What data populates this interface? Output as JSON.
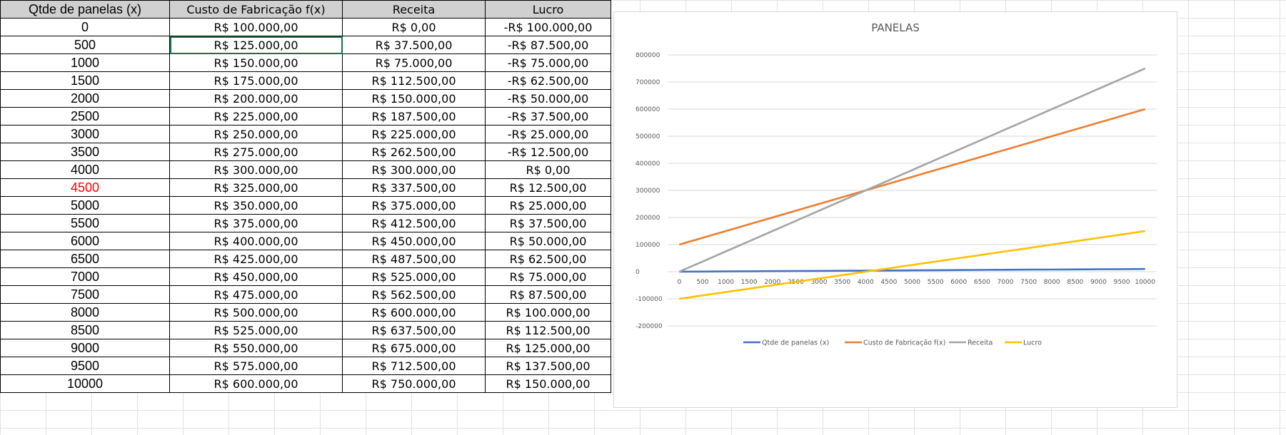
{
  "table": {
    "headers": [
      "Qtde de panelas (x)",
      "Custo de Fabricação f(x)",
      "Receita",
      "Lucro"
    ],
    "highlight_row_index": 9,
    "selected_cell": {
      "row": 1,
      "col": 1
    },
    "rows": [
      [
        "0",
        "R$ 100.000,00",
        "R$ 0,00",
        "-R$ 100.000,00"
      ],
      [
        "500",
        "R$ 125.000,00",
        "R$ 37.500,00",
        "-R$ 87.500,00"
      ],
      [
        "1000",
        "R$ 150.000,00",
        "R$ 75.000,00",
        "-R$ 75.000,00"
      ],
      [
        "1500",
        "R$ 175.000,00",
        "R$ 112.500,00",
        "-R$ 62.500,00"
      ],
      [
        "2000",
        "R$ 200.000,00",
        "R$ 150.000,00",
        "-R$ 50.000,00"
      ],
      [
        "2500",
        "R$ 225.000,00",
        "R$ 187.500,00",
        "-R$ 37.500,00"
      ],
      [
        "3000",
        "R$ 250.000,00",
        "R$ 225.000,00",
        "-R$ 25.000,00"
      ],
      [
        "3500",
        "R$ 275.000,00",
        "R$ 262.500,00",
        "-R$ 12.500,00"
      ],
      [
        "4000",
        "R$ 300.000,00",
        "R$ 300.000,00",
        "R$ 0,00"
      ],
      [
        "4500",
        "R$ 325.000,00",
        "R$ 337.500,00",
        "R$ 12.500,00"
      ],
      [
        "5000",
        "R$ 350.000,00",
        "R$ 375.000,00",
        "R$ 25.000,00"
      ],
      [
        "5500",
        "R$ 375.000,00",
        "R$ 412.500,00",
        "R$ 37.500,00"
      ],
      [
        "6000",
        "R$ 400.000,00",
        "R$ 450.000,00",
        "R$ 50.000,00"
      ],
      [
        "6500",
        "R$ 425.000,00",
        "R$ 487.500,00",
        "R$ 62.500,00"
      ],
      [
        "7000",
        "R$ 450.000,00",
        "R$ 525.000,00",
        "R$ 75.000,00"
      ],
      [
        "7500",
        "R$ 475.000,00",
        "R$ 562.500,00",
        "R$ 87.500,00"
      ],
      [
        "8000",
        "R$ 500.000,00",
        "R$ 600.000,00",
        "R$ 100.000,00"
      ],
      [
        "8500",
        "R$ 525.000,00",
        "R$ 637.500,00",
        "R$ 112.500,00"
      ],
      [
        "9000",
        "R$ 550.000,00",
        "R$ 675.000,00",
        "R$ 125.000,00"
      ],
      [
        "9500",
        "R$ 575.000,00",
        "R$ 712.500,00",
        "R$ 137.500,00"
      ],
      [
        "10000",
        "R$ 600.000,00",
        "R$ 750.000,00",
        "R$ 150.000,00"
      ]
    ],
    "colors": {
      "highlight_text": "#ff0000",
      "header_bg": "#d0d0d0",
      "selection": "#1e7145"
    }
  },
  "chart_data": {
    "type": "line",
    "title": "PANELAS",
    "xlabel": "",
    "ylabel": "",
    "x": [
      "0",
      "500",
      "1000",
      "1500",
      "2000",
      "2500",
      "3000",
      "3500",
      "4000",
      "4500",
      "5000",
      "5500",
      "6000",
      "6500",
      "7000",
      "7500",
      "8000",
      "8500",
      "9000",
      "9500",
      "10000"
    ],
    "ylim": [
      -200000,
      800000
    ],
    "yticks": [
      -200000,
      -100000,
      0,
      100000,
      200000,
      300000,
      400000,
      500000,
      600000,
      700000,
      800000
    ],
    "ytick_labels": [
      "-200000",
      "-100000",
      "0",
      "100000",
      "200000",
      "300000",
      "400000",
      "500000",
      "600000",
      "700000",
      "800000"
    ],
    "grid": true,
    "legend_position": "bottom",
    "series": [
      {
        "name": "Qtde de panelas (x)",
        "color": "#4472c4",
        "values": [
          0,
          500,
          1000,
          1500,
          2000,
          2500,
          3000,
          3500,
          4000,
          4500,
          5000,
          5500,
          6000,
          6500,
          7000,
          7500,
          8000,
          8500,
          9000,
          9500,
          10000
        ]
      },
      {
        "name": "Custo de Fabricação f(x)",
        "color": "#ed7d31",
        "values": [
          100000,
          125000,
          150000,
          175000,
          200000,
          225000,
          250000,
          275000,
          300000,
          325000,
          350000,
          375000,
          400000,
          425000,
          450000,
          475000,
          500000,
          525000,
          550000,
          575000,
          600000
        ]
      },
      {
        "name": "Receita",
        "color": "#a5a5a5",
        "values": [
          0,
          37500,
          75000,
          112500,
          150000,
          187500,
          225000,
          262500,
          300000,
          337500,
          375000,
          412500,
          450000,
          487500,
          525000,
          562500,
          600000,
          637500,
          675000,
          712500,
          750000
        ]
      },
      {
        "name": "Lucro",
        "color": "#ffc000",
        "values": [
          -100000,
          -87500,
          -75000,
          -62500,
          -50000,
          -37500,
          -25000,
          -12500,
          0,
          12500,
          25000,
          37500,
          50000,
          62500,
          75000,
          87500,
          100000,
          112500,
          125000,
          137500,
          150000
        ]
      }
    ]
  }
}
